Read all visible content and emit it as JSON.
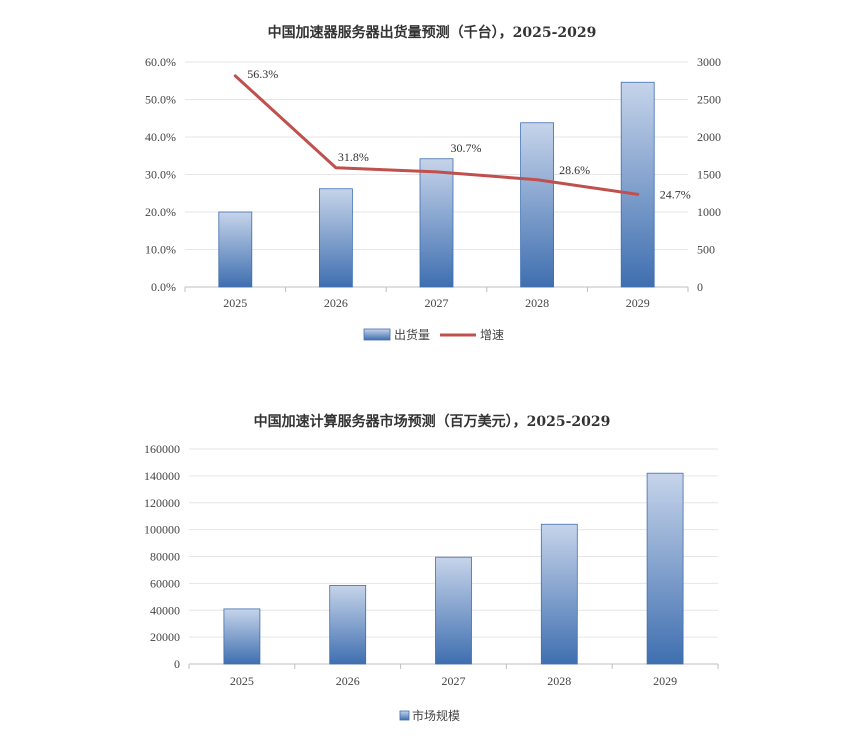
{
  "chart_data": [
    {
      "type": "bar",
      "title": "中国加速器服务器出货量预测（千台），2025-2029",
      "categories": [
        "2025",
        "2026",
        "2027",
        "2028",
        "2029"
      ],
      "series": [
        {
          "name": "出货量",
          "type": "bar",
          "axis": "right",
          "values": [
            1000,
            1310,
            1710,
            2190,
            2730
          ],
          "color": "#4a78b8"
        },
        {
          "name": "增速",
          "type": "line",
          "axis": "left",
          "values": [
            56.3,
            31.8,
            30.7,
            28.6,
            24.7
          ],
          "labels": [
            "56.3%",
            "31.8%",
            "30.7%",
            "28.6%",
            "24.7%"
          ],
          "color": "#c0504d"
        }
      ],
      "y_left": {
        "range": [
          0,
          60
        ],
        "ticks": [
          "0.0%",
          "10.0%",
          "20.0%",
          "30.0%",
          "40.0%",
          "50.0%",
          "60.0%"
        ]
      },
      "y_right": {
        "range": [
          0,
          3000
        ],
        "ticks": [
          "0",
          "500",
          "1000",
          "1500",
          "2000",
          "2500",
          "3000"
        ]
      },
      "grid": true,
      "legend": "bottom"
    },
    {
      "type": "bar",
      "title": "中国加速计算服务器市场预测（百万美元），2025-2029",
      "categories": [
        "2025",
        "2026",
        "2027",
        "2028",
        "2029"
      ],
      "series": [
        {
          "name": "市场规模",
          "values": [
            41000,
            58500,
            79500,
            104000,
            142000
          ],
          "color": "#4a78b8"
        }
      ],
      "ylim": [
        0,
        160000
      ],
      "y_ticks": [
        "0",
        "20000",
        "40000",
        "60000",
        "80000",
        "100000",
        "120000",
        "140000",
        "160000"
      ],
      "grid": true,
      "legend": "bottom"
    }
  ]
}
